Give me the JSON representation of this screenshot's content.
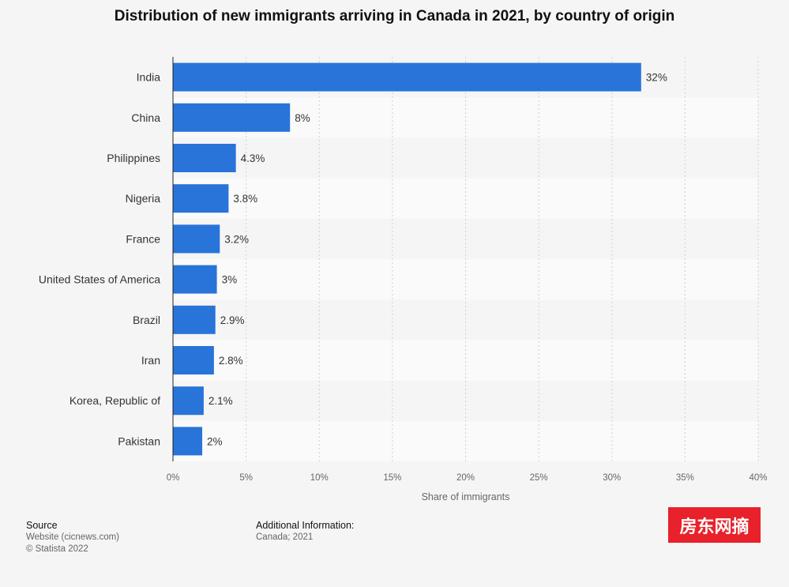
{
  "title": "Distribution of new immigrants arriving in Canada in 2021, by country of origin",
  "chart_data": {
    "type": "bar",
    "orientation": "horizontal",
    "categories": [
      "India",
      "China",
      "Philippines",
      "Nigeria",
      "France",
      "United States of America",
      "Brazil",
      "Iran",
      "Korea, Republic of",
      "Pakistan"
    ],
    "values": [
      32,
      8,
      4.3,
      3.8,
      3.2,
      3,
      2.9,
      2.8,
      2.1,
      2
    ],
    "value_labels": [
      "32%",
      "8%",
      "4.3%",
      "3.8%",
      "3.2%",
      "3%",
      "2.9%",
      "2.8%",
      "2.1%",
      "2%"
    ],
    "xlabel": "Share of immigrants",
    "xlim": [
      0,
      40
    ],
    "xticks": [
      0,
      5,
      10,
      15,
      20,
      25,
      30,
      35,
      40
    ],
    "xtick_labels": [
      "0%",
      "5%",
      "10%",
      "15%",
      "20%",
      "25%",
      "30%",
      "35%",
      "40%"
    ],
    "grid": true,
    "bar_color": "#2874d9"
  },
  "footer": {
    "source_heading": "Source",
    "source_line1": "Website (cicnews.com)",
    "source_line2": "© Statista 2022",
    "info_heading": "Additional Information:",
    "info_line1": "Canada; 2021"
  },
  "badge": {
    "text": "房东网摘",
    "color": "#e8212b"
  }
}
